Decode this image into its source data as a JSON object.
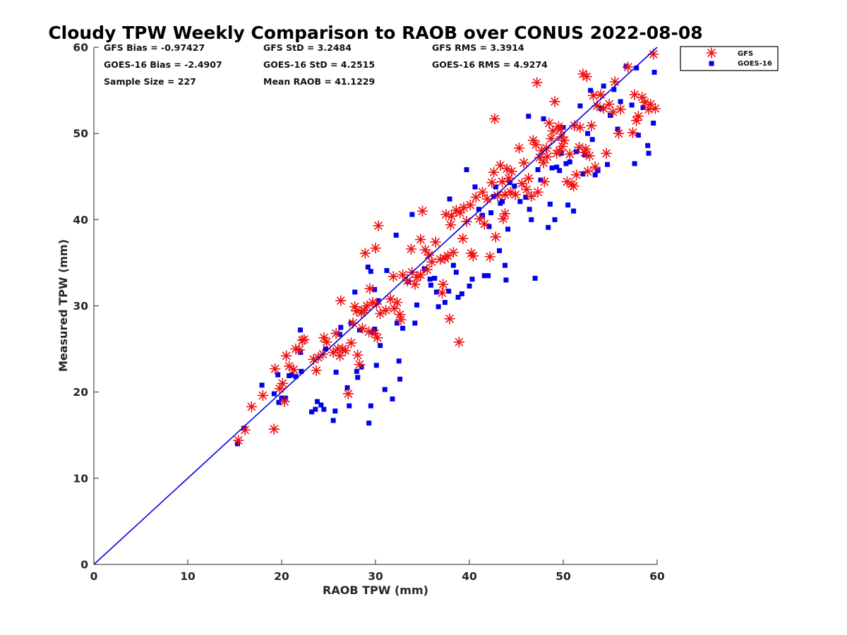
{
  "chart_data": {
    "type": "scatter",
    "title": "Cloudy TPW Weekly Comparison to RAOB over CONUS 2022-08-08",
    "xlabel": "RAOB TPW (mm)",
    "ylabel": "Measured TPW (mm)",
    "xlim": [
      0,
      60
    ],
    "ylim": [
      0,
      60
    ],
    "xticks": [
      "0",
      "10",
      "20",
      "30",
      "40",
      "50",
      "60"
    ],
    "yticks": [
      "0",
      "10",
      "20",
      "30",
      "40",
      "50",
      "60"
    ],
    "grid": false,
    "legend_position": "outside-top-right",
    "stats": [
      "GFS Bias = -0.97427",
      "GFS StD = 3.2484",
      "GFS RMS = 3.3914",
      "GOES-16 Bias = -2.4907",
      "GOES-16 StD = 4.2515",
      "GOES-16 RMS = 4.9274",
      "Sample Size = 227",
      "Mean RAOB = 41.1229"
    ],
    "reference_line": {
      "from": [
        0,
        0
      ],
      "to": [
        60,
        60
      ],
      "color": "#0000dd"
    },
    "series": [
      {
        "name": "GFS",
        "marker": "asterisk",
        "color": "#ee1111",
        "points": [
          [
            15.4,
            14.4
          ],
          [
            16.1,
            15.6
          ],
          [
            16.8,
            18.3
          ],
          [
            18.0,
            19.6
          ],
          [
            19.2,
            15.7
          ],
          [
            19.3,
            22.7
          ],
          [
            19.8,
            20.4
          ],
          [
            20.1,
            21.0
          ],
          [
            20.3,
            18.9
          ],
          [
            20.5,
            24.2
          ],
          [
            20.8,
            23.0
          ],
          [
            21.3,
            22.6
          ],
          [
            21.5,
            25.0
          ],
          [
            21.9,
            24.9
          ],
          [
            22.2,
            26.0
          ],
          [
            22.4,
            26.1
          ],
          [
            23.4,
            23.8
          ],
          [
            23.7,
            22.5
          ],
          [
            23.9,
            24.0
          ],
          [
            24.4,
            24.4
          ],
          [
            24.5,
            26.3
          ],
          [
            24.8,
            25.8
          ],
          [
            25.5,
            24.6
          ],
          [
            25.8,
            26.8
          ],
          [
            26.0,
            25.0
          ],
          [
            26.2,
            24.2
          ],
          [
            26.3,
            30.6
          ],
          [
            26.5,
            25.0
          ],
          [
            26.8,
            24.8
          ],
          [
            27.1,
            19.8
          ],
          [
            27.4,
            25.7
          ],
          [
            27.6,
            28.0
          ],
          [
            27.8,
            29.9
          ],
          [
            28.0,
            29.4
          ],
          [
            28.1,
            24.3
          ],
          [
            28.3,
            23.2
          ],
          [
            28.5,
            29.2
          ],
          [
            28.6,
            27.4
          ],
          [
            28.8,
            29.5
          ],
          [
            28.9,
            36.1
          ],
          [
            29.1,
            30.0
          ],
          [
            29.3,
            27.0
          ],
          [
            29.4,
            32.0
          ],
          [
            29.7,
            30.4
          ],
          [
            29.9,
            26.8
          ],
          [
            30.0,
            36.7
          ],
          [
            30.1,
            30.2
          ],
          [
            30.2,
            26.3
          ],
          [
            30.3,
            39.3
          ],
          [
            30.5,
            29.1
          ],
          [
            31.1,
            29.5
          ],
          [
            31.6,
            30.8
          ],
          [
            31.9,
            33.4
          ],
          [
            32.0,
            29.7
          ],
          [
            32.3,
            30.4
          ],
          [
            32.6,
            29.0
          ],
          [
            32.7,
            28.4
          ],
          [
            32.9,
            33.6
          ],
          [
            33.4,
            32.9
          ],
          [
            33.8,
            36.6
          ],
          [
            33.9,
            33.9
          ],
          [
            34.2,
            32.5
          ],
          [
            34.4,
            33.3
          ],
          [
            34.8,
            37.7
          ],
          [
            34.8,
            33.6
          ],
          [
            35.0,
            41.0
          ],
          [
            35.3,
            36.5
          ],
          [
            35.5,
            34.2
          ],
          [
            35.7,
            35.9
          ],
          [
            36.0,
            35.1
          ],
          [
            36.4,
            37.4
          ],
          [
            36.9,
            35.4
          ],
          [
            37.1,
            31.5
          ],
          [
            37.2,
            32.5
          ],
          [
            37.4,
            35.5
          ],
          [
            37.5,
            40.6
          ],
          [
            37.7,
            35.8
          ],
          [
            37.9,
            28.5
          ],
          [
            38.0,
            39.4
          ],
          [
            38.1,
            40.4
          ],
          [
            38.3,
            36.2
          ],
          [
            38.6,
            41.1
          ],
          [
            38.9,
            25.8
          ],
          [
            39.0,
            40.8
          ],
          [
            39.3,
            37.8
          ],
          [
            39.4,
            41.4
          ],
          [
            39.7,
            39.8
          ],
          [
            40.1,
            41.7
          ],
          [
            40.2,
            36.1
          ],
          [
            40.4,
            35.8
          ],
          [
            40.7,
            42.6
          ],
          [
            41.1,
            40.1
          ],
          [
            41.4,
            43.2
          ],
          [
            41.6,
            39.5
          ],
          [
            41.9,
            42.4
          ],
          [
            42.2,
            35.7
          ],
          [
            42.4,
            44.3
          ],
          [
            42.6,
            45.5
          ],
          [
            42.7,
            51.7
          ],
          [
            42.8,
            38.0
          ],
          [
            43.0,
            42.8
          ],
          [
            43.3,
            46.3
          ],
          [
            43.5,
            44.4
          ],
          [
            43.6,
            40.1
          ],
          [
            43.8,
            42.9
          ],
          [
            43.8,
            40.7
          ],
          [
            44.0,
            45.9
          ],
          [
            44.2,
            44.8
          ],
          [
            44.4,
            43.2
          ],
          [
            44.5,
            45.6
          ],
          [
            44.9,
            42.9
          ],
          [
            45.3,
            48.3
          ],
          [
            45.6,
            44.2
          ],
          [
            45.8,
            46.6
          ],
          [
            46.1,
            43.5
          ],
          [
            46.3,
            44.8
          ],
          [
            46.6,
            42.7
          ],
          [
            46.8,
            49.2
          ],
          [
            47.1,
            48.7
          ],
          [
            47.2,
            55.9
          ],
          [
            47.3,
            43.2
          ],
          [
            47.5,
            47.2
          ],
          [
            47.7,
            48.0
          ],
          [
            47.9,
            46.6
          ],
          [
            48.0,
            44.4
          ],
          [
            48.2,
            48.3
          ],
          [
            48.3,
            47.3
          ],
          [
            48.5,
            51.2
          ],
          [
            48.7,
            49.4
          ],
          [
            48.9,
            50.3
          ],
          [
            49.1,
            53.7
          ],
          [
            49.3,
            47.7
          ],
          [
            49.5,
            50.8
          ],
          [
            49.6,
            48.0
          ],
          [
            49.7,
            50.5
          ],
          [
            49.8,
            49.6
          ],
          [
            49.9,
            48.5
          ],
          [
            50.1,
            49.2
          ],
          [
            50.4,
            44.4
          ],
          [
            50.7,
            47.6
          ],
          [
            50.9,
            44.1
          ],
          [
            51.1,
            43.9
          ],
          [
            51.2,
            50.9
          ],
          [
            51.4,
            45.2
          ],
          [
            51.7,
            48.4
          ],
          [
            51.8,
            50.7
          ],
          [
            52.1,
            56.9
          ],
          [
            52.3,
            47.8
          ],
          [
            52.4,
            48.2
          ],
          [
            52.5,
            56.6
          ],
          [
            52.6,
            45.6
          ],
          [
            52.8,
            47.4
          ],
          [
            53.0,
            50.9
          ],
          [
            53.2,
            54.4
          ],
          [
            53.4,
            46.1
          ],
          [
            53.6,
            53.2
          ],
          [
            54.0,
            54.5
          ],
          [
            54.3,
            52.9
          ],
          [
            54.6,
            47.7
          ],
          [
            54.9,
            53.4
          ],
          [
            55.3,
            52.5
          ],
          [
            55.5,
            56.0
          ],
          [
            55.9,
            50.0
          ],
          [
            56.1,
            52.8
          ],
          [
            56.9,
            57.7
          ],
          [
            57.4,
            50.1
          ],
          [
            57.6,
            54.5
          ],
          [
            57.8,
            51.5
          ],
          [
            58.0,
            52.0
          ],
          [
            58.4,
            54.2
          ],
          [
            58.7,
            53.6
          ],
          [
            59.1,
            52.8
          ],
          [
            59.3,
            53.4
          ],
          [
            59.6,
            59.2
          ],
          [
            59.8,
            52.9
          ]
        ]
      },
      {
        "name": "GOES-16",
        "marker": "square",
        "color": "#0000ee",
        "points": [
          [
            15.3,
            14.0
          ],
          [
            16.0,
            15.8
          ],
          [
            17.9,
            20.8
          ],
          [
            19.2,
            19.8
          ],
          [
            19.6,
            22.0
          ],
          [
            19.7,
            18.8
          ],
          [
            20.0,
            19.3
          ],
          [
            20.4,
            19.3
          ],
          [
            20.8,
            21.9
          ],
          [
            21.1,
            22.0
          ],
          [
            21.5,
            21.8
          ],
          [
            22.0,
            27.2
          ],
          [
            22.1,
            22.4
          ],
          [
            22.0,
            24.6
          ],
          [
            23.2,
            17.7
          ],
          [
            23.6,
            18.0
          ],
          [
            23.8,
            18.9
          ],
          [
            24.2,
            18.5
          ],
          [
            24.5,
            18.0
          ],
          [
            24.7,
            25.0
          ],
          [
            25.5,
            16.7
          ],
          [
            25.7,
            17.8
          ],
          [
            25.8,
            22.3
          ],
          [
            26.2,
            26.7
          ],
          [
            26.3,
            27.5
          ],
          [
            27.0,
            20.5
          ],
          [
            27.2,
            18.4
          ],
          [
            27.4,
            28.0
          ],
          [
            27.8,
            31.6
          ],
          [
            28.0,
            22.4
          ],
          [
            28.1,
            21.7
          ],
          [
            28.3,
            27.2
          ],
          [
            28.5,
            22.9
          ],
          [
            29.2,
            34.5
          ],
          [
            29.3,
            16.4
          ],
          [
            29.5,
            18.4
          ],
          [
            29.5,
            34.0
          ],
          [
            29.7,
            26.9
          ],
          [
            29.9,
            27.3
          ],
          [
            29.9,
            31.9
          ],
          [
            30.1,
            23.1
          ],
          [
            30.3,
            30.6
          ],
          [
            30.5,
            25.4
          ],
          [
            31.0,
            20.3
          ],
          [
            31.2,
            34.1
          ],
          [
            31.8,
            19.2
          ],
          [
            32.2,
            38.2
          ],
          [
            32.3,
            28.0
          ],
          [
            32.5,
            23.6
          ],
          [
            32.6,
            21.5
          ],
          [
            32.9,
            27.4
          ],
          [
            33.5,
            32.8
          ],
          [
            33.9,
            40.6
          ],
          [
            34.2,
            28.0
          ],
          [
            34.4,
            30.1
          ],
          [
            35.2,
            34.3
          ],
          [
            35.8,
            33.1
          ],
          [
            35.9,
            32.4
          ],
          [
            36.3,
            33.2
          ],
          [
            36.5,
            31.6
          ],
          [
            36.7,
            29.9
          ],
          [
            37.4,
            30.4
          ],
          [
            37.8,
            31.7
          ],
          [
            37.9,
            42.4
          ],
          [
            38.3,
            34.7
          ],
          [
            38.6,
            33.9
          ],
          [
            38.8,
            31.0
          ],
          [
            39.2,
            31.4
          ],
          [
            39.7,
            45.8
          ],
          [
            40.0,
            32.3
          ],
          [
            40.3,
            33.1
          ],
          [
            40.6,
            43.8
          ],
          [
            41.0,
            41.2
          ],
          [
            41.4,
            40.5
          ],
          [
            41.6,
            33.5
          ],
          [
            42.0,
            33.5
          ],
          [
            42.1,
            39.2
          ],
          [
            42.3,
            40.8
          ],
          [
            42.6,
            42.7
          ],
          [
            42.8,
            43.8
          ],
          [
            43.2,
            36.4
          ],
          [
            43.3,
            41.9
          ],
          [
            43.5,
            42.1
          ],
          [
            43.8,
            34.7
          ],
          [
            43.9,
            33.0
          ],
          [
            44.1,
            38.9
          ],
          [
            44.3,
            44.3
          ],
          [
            44.8,
            43.9
          ],
          [
            45.4,
            42.1
          ],
          [
            46.0,
            42.6
          ],
          [
            46.3,
            52.0
          ],
          [
            46.4,
            41.2
          ],
          [
            46.6,
            40.0
          ],
          [
            47.0,
            33.2
          ],
          [
            47.3,
            45.8
          ],
          [
            47.6,
            44.6
          ],
          [
            47.9,
            51.7
          ],
          [
            48.4,
            39.1
          ],
          [
            48.6,
            41.8
          ],
          [
            48.8,
            46.0
          ],
          [
            49.1,
            40.0
          ],
          [
            49.3,
            46.1
          ],
          [
            49.6,
            45.7
          ],
          [
            49.8,
            47.7
          ],
          [
            50.0,
            50.7
          ],
          [
            50.3,
            46.5
          ],
          [
            50.5,
            41.7
          ],
          [
            50.7,
            46.7
          ],
          [
            51.1,
            41.0
          ],
          [
            51.4,
            47.9
          ],
          [
            51.8,
            53.2
          ],
          [
            52.1,
            45.3
          ],
          [
            52.3,
            47.5
          ],
          [
            52.6,
            50.0
          ],
          [
            52.9,
            55.0
          ],
          [
            53.1,
            49.3
          ],
          [
            53.4,
            45.2
          ],
          [
            53.7,
            45.7
          ],
          [
            54.0,
            52.9
          ],
          [
            54.3,
            55.5
          ],
          [
            54.7,
            46.4
          ],
          [
            55.0,
            52.1
          ],
          [
            55.4,
            55.1
          ],
          [
            55.8,
            50.5
          ],
          [
            56.1,
            53.7
          ],
          [
            56.7,
            57.8
          ],
          [
            57.3,
            53.3
          ],
          [
            57.6,
            46.5
          ],
          [
            57.8,
            57.6
          ],
          [
            58.0,
            49.8
          ],
          [
            58.5,
            53.0
          ],
          [
            59.0,
            48.6
          ],
          [
            59.1,
            47.7
          ],
          [
            59.6,
            51.2
          ],
          [
            59.7,
            57.1
          ]
        ]
      }
    ]
  }
}
